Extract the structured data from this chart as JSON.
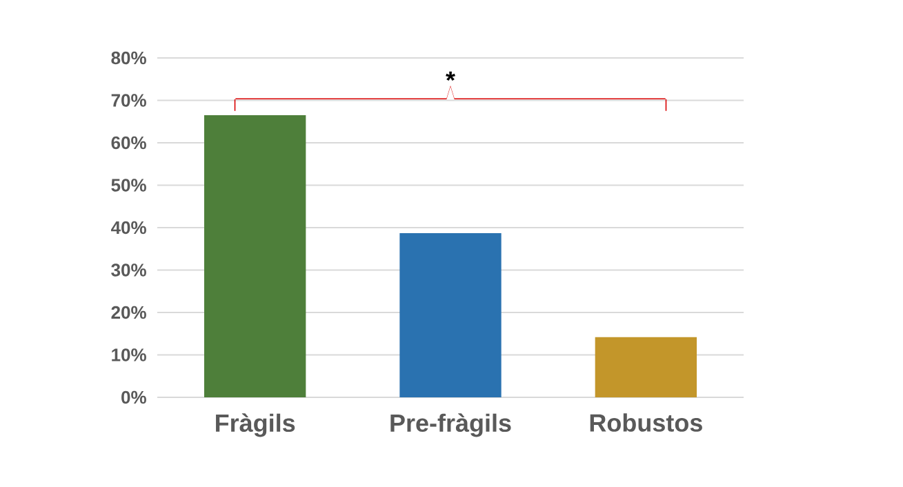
{
  "chart_data": {
    "type": "bar",
    "categories": [
      "Fràgils",
      "Pre-fràgils",
      "Robustos"
    ],
    "values": [
      66.5,
      38.7,
      14.2
    ],
    "colors": [
      "#4e7f3a",
      "#2a72b0",
      "#c3962a"
    ],
    "ylim": [
      0,
      80
    ],
    "yticks": [
      {
        "value": 0,
        "label": "0%"
      },
      {
        "value": 10,
        "label": "10%"
      },
      {
        "value": 20,
        "label": "20%"
      },
      {
        "value": 30,
        "label": "30%"
      },
      {
        "value": 40,
        "label": "40%"
      },
      {
        "value": 50,
        "label": "50%"
      },
      {
        "value": 60,
        "label": "60%"
      },
      {
        "value": 70,
        "label": "70%"
      },
      {
        "value": 80,
        "label": "80%"
      }
    ],
    "grid": "y",
    "annotations": [
      "*"
    ]
  }
}
